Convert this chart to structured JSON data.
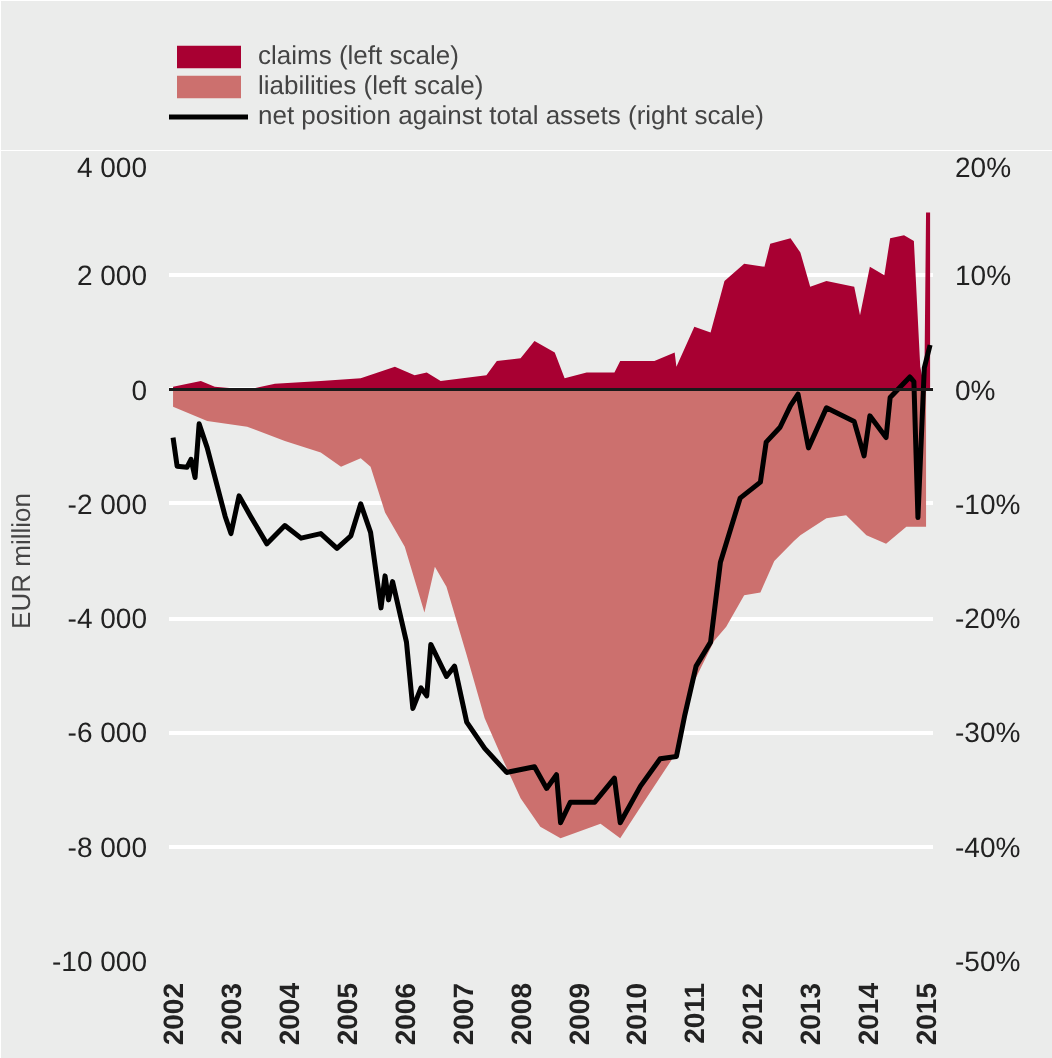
{
  "chart_data": {
    "type": "area",
    "ylabel": "EUR million",
    "xlim": [
      2001.93,
      2015.12
    ],
    "xticks": [
      2002,
      2003,
      2004,
      2005,
      2006,
      2007,
      2008,
      2009,
      2010,
      2011,
      2012,
      2013,
      2014,
      2015
    ],
    "ylim": [
      -10000,
      4000
    ],
    "yticks": [
      {
        "value": -10000,
        "label": "-10 000"
      },
      {
        "value": -8000,
        "label": "-8 000"
      },
      {
        "value": -6000,
        "label": "-6 000"
      },
      {
        "value": -4000,
        "label": "-4 000"
      },
      {
        "value": -2000,
        "label": "-2 000"
      },
      0,
      {
        "value": 2000,
        "label": "2 000"
      },
      {
        "value": 4000,
        "label": "4 000"
      }
    ],
    "y2lim": [
      -50,
      20
    ],
    "y2ticks": [
      {
        "value": -50,
        "label": "-50%"
      },
      {
        "value": -40,
        "label": "-40%"
      },
      {
        "value": -30,
        "label": "-30%"
      },
      {
        "value": -20,
        "label": "-20%"
      },
      {
        "value": -10,
        "label": "-10%"
      },
      {
        "value": 0,
        "label": "0%"
      },
      {
        "value": 10,
        "label": "10%"
      },
      {
        "value": 20,
        "label": "20%"
      }
    ],
    "grid": "y",
    "legend": "top",
    "ref_lines": [
      {
        "axis": "y",
        "value": 0,
        "color": "#1a1a1a"
      }
    ],
    "series": [
      {
        "name": "claims (left scale)",
        "color": "#a80032",
        "x": [
          2002.0,
          2002.48,
          2002.72,
          2003.28,
          2003.76,
          2004.55,
          2005.24,
          2005.83,
          2006.17,
          2006.38,
          2006.62,
          2007.41,
          2007.59,
          2008.0,
          2008.24,
          2008.59,
          2008.76,
          2009.14,
          2009.62,
          2009.72,
          2010.31,
          2010.66,
          2010.69,
          2011.0,
          2011.28,
          2011.52,
          2011.86,
          2012.21,
          2012.31,
          2012.66,
          2012.83,
          2013.0,
          2013.28,
          2013.76,
          2013.86,
          2014.03,
          2014.28,
          2014.38,
          2014.62,
          2014.79,
          2014.9,
          2014.97,
          2015.0,
          2015.07
        ],
        "values": [
          50,
          150,
          50,
          0,
          100,
          150,
          200,
          400,
          250,
          300,
          150,
          250,
          500,
          550,
          850,
          650,
          200,
          300,
          300,
          500,
          500,
          650,
          400,
          1100,
          1000,
          1900,
          2200,
          2150,
          2550,
          2650,
          2400,
          1800,
          1900,
          1800,
          1300,
          2150,
          2000,
          2650,
          2700,
          2600,
          400,
          50,
          3100,
          3100
        ]
      },
      {
        "name": "liabilities (left scale)",
        "color": "#cc706e",
        "x": [
          2002.0,
          2002.59,
          2003.28,
          2003.93,
          2004.55,
          2004.9,
          2005.24,
          2005.41,
          2005.66,
          2006.0,
          2006.34,
          2006.52,
          2006.72,
          2007.07,
          2007.38,
          2007.66,
          2008.0,
          2008.34,
          2008.69,
          2009.38,
          2009.72,
          2010.17,
          2010.66,
          2011.0,
          2011.34,
          2011.55,
          2011.86,
          2012.14,
          2012.38,
          2012.72,
          2012.83,
          2013.28,
          2013.62,
          2013.97,
          2014.31,
          2014.66,
          2015.0
        ],
        "values": [
          -300,
          -550,
          -650,
          -900,
          -1100,
          -1350,
          -1200,
          -1350,
          -2150,
          -2750,
          -3900,
          -3100,
          -3450,
          -4650,
          -5750,
          -6400,
          -7150,
          -7650,
          -7850,
          -7600,
          -7850,
          -7150,
          -6400,
          -5100,
          -4400,
          -4150,
          -3600,
          -3550,
          -3000,
          -2650,
          -2550,
          -2250,
          -2200,
          -2550,
          -2700,
          -2400,
          -2400
        ]
      },
      {
        "name": "net position against total assets (right scale)",
        "type": "line",
        "axis": "y2",
        "color": "#000000",
        "x": [
          2002.0,
          2002.07,
          2002.24,
          2002.31,
          2002.38,
          2002.45,
          2002.59,
          2002.9,
          2003.0,
          2003.14,
          2003.34,
          2003.62,
          2003.93,
          2004.21,
          2004.55,
          2004.83,
          2005.07,
          2005.24,
          2005.41,
          2005.59,
          2005.66,
          2005.72,
          2005.79,
          2006.03,
          2006.14,
          2006.28,
          2006.38,
          2006.45,
          2006.72,
          2006.86,
          2007.07,
          2007.38,
          2007.76,
          2008.24,
          2008.45,
          2008.62,
          2008.69,
          2008.86,
          2009.28,
          2009.62,
          2009.72,
          2010.07,
          2010.41,
          2010.69,
          2010.83,
          2011.03,
          2011.28,
          2011.45,
          2011.79,
          2012.14,
          2012.24,
          2012.48,
          2012.66,
          2012.79,
          2012.97,
          2013.28,
          2013.76,
          2013.93,
          2014.03,
          2014.31,
          2014.38,
          2014.72,
          2014.79,
          2014.86,
          2014.97,
          2015.07
        ],
        "values": [
          -4.2,
          -6.7,
          -6.8,
          -6.1,
          -7.7,
          -3.0,
          -5.1,
          -11.1,
          -12.6,
          -9.3,
          -11.1,
          -13.5,
          -11.9,
          -13.0,
          -12.6,
          -13.9,
          -12.8,
          -10.0,
          -12.5,
          -19.1,
          -16.3,
          -18.4,
          -16.8,
          -22.1,
          -27.9,
          -26.1,
          -26.8,
          -22.3,
          -25.1,
          -24.2,
          -29.1,
          -31.4,
          -33.5,
          -33.0,
          -34.9,
          -33.7,
          -37.9,
          -36.1,
          -36.1,
          -34.0,
          -37.9,
          -34.7,
          -32.3,
          -32.1,
          -28.6,
          -24.2,
          -22.1,
          -15.1,
          -9.5,
          -8.1,
          -4.6,
          -3.3,
          -1.4,
          -0.4,
          -5.1,
          -1.6,
          -2.8,
          -5.8,
          -2.3,
          -4.2,
          -0.7,
          1.1,
          0.7,
          -11.2,
          1.9,
          3.9
        ]
      }
    ]
  }
}
